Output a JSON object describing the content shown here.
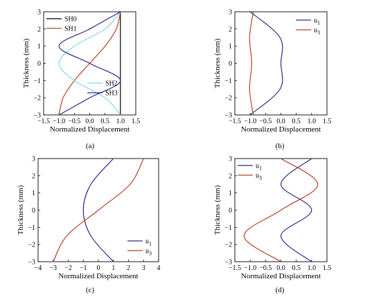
{
  "chart_data": [
    {
      "panel": "(a)",
      "type": "line",
      "xlabel": "Normalized Displacement",
      "ylabel": "Thickness (mm)",
      "xlim": [
        -1.5,
        1.5
      ],
      "ylim": [
        -3,
        3
      ],
      "xticks": [
        "-1.5",
        "-1.0",
        "-0.5",
        "0.0",
        "0.5",
        "1.0",
        "1.5"
      ],
      "yticks": [
        "3",
        "2",
        "1",
        "0",
        "-1",
        "-2",
        "-3"
      ],
      "legend_groups": [
        [
          "SH0",
          "SH1"
        ],
        [
          "SH2",
          "SH3"
        ]
      ],
      "legend_placement": [
        "top-left",
        "lower-right"
      ],
      "series": [
        {
          "name": "SH0",
          "color": "#000000",
          "x": [
            1,
            1,
            1,
            1,
            1,
            1,
            1
          ],
          "y": [
            -3,
            -2,
            -1,
            0,
            1,
            2,
            3
          ]
        },
        {
          "name": "SH1",
          "color": "#b5432a",
          "x": [
            -1,
            -0.866,
            -0.5,
            0,
            0.5,
            0.866,
            1
          ],
          "y": [
            -3,
            -2,
            -1,
            0,
            1,
            2,
            3
          ]
        },
        {
          "name": "SH2",
          "color": "#7fd6ef",
          "x": [
            1,
            0.5,
            -0.5,
            -1,
            -0.5,
            0.5,
            1
          ],
          "y": [
            -3,
            -2,
            -1,
            0,
            1,
            2,
            3
          ]
        },
        {
          "name": "SH3",
          "color": "#2b2a8c",
          "x": [
            -1,
            0,
            1,
            0,
            -1,
            0,
            1
          ],
          "y": [
            -3,
            -2,
            -1,
            0,
            1,
            2,
            3
          ]
        }
      ]
    },
    {
      "panel": "(b)",
      "type": "line",
      "xlabel": "Normalized Displacement",
      "ylabel": "Thickness (mm)",
      "xlim": [
        -1.5,
        1.5
      ],
      "ylim": [
        -3,
        3
      ],
      "xticks": [
        "-1.5",
        "-1.0",
        "-0.5",
        "0.0",
        "0.5",
        "1.0",
        "1.5"
      ],
      "yticks": [
        "3",
        "2",
        "1",
        "0",
        "-1",
        "-2",
        "-3"
      ],
      "legend_groups": [
        [
          "u1",
          "u3"
        ]
      ],
      "legend_placement": [
        "top-right"
      ],
      "series": [
        {
          "name": "u1",
          "color": "#2b2a8c",
          "x": [
            -1,
            -0.03,
            0,
            -0.03,
            -1
          ],
          "y": [
            3,
            1.5,
            0,
            -1.5,
            -3
          ]
        },
        {
          "name": "u3",
          "color": "#b5432a",
          "x": [
            -0.9,
            -1.02,
            -0.95,
            -1.02,
            -0.9
          ],
          "y": [
            3,
            1.5,
            0,
            -1.5,
            -3
          ]
        }
      ]
    },
    {
      "panel": "(c)",
      "type": "line",
      "xlabel": "Normalized Displacement",
      "ylabel": "Thickness (mm)",
      "xlim": [
        -4,
        4
      ],
      "ylim": [
        -3,
        3
      ],
      "xticks": [
        "-4",
        "-3",
        "-2",
        "-1",
        "0",
        "1",
        "2",
        "3",
        "4"
      ],
      "yticks": [
        "3",
        "2",
        "1",
        "0",
        "-1",
        "-2",
        "-3"
      ],
      "legend_groups": [
        [
          "u1",
          "u3"
        ]
      ],
      "legend_placement": [
        "bottom-right"
      ],
      "series": [
        {
          "name": "u1",
          "color": "#2b2a8c",
          "x": [
            1,
            -0.5,
            -1,
            -0.5,
            1
          ],
          "y": [
            3,
            1.5,
            0,
            -1.5,
            -3
          ]
        },
        {
          "name": "u3",
          "color": "#b5432a",
          "x": [
            -3,
            -2.1,
            0,
            2.1,
            3
          ],
          "y": [
            -3,
            -1.5,
            0,
            1.5,
            3
          ]
        }
      ]
    },
    {
      "panel": "(d)",
      "type": "line",
      "xlabel": "Normalized Displacement",
      "ylabel": "Thickness (mm)",
      "xlim": [
        -1.5,
        1.5
      ],
      "ylim": [
        -3,
        3
      ],
      "xticks": [
        "-1.5",
        "-1.0",
        "-0.5",
        "0.0",
        "0.5",
        "1.0",
        "1.5"
      ],
      "yticks": [
        "3",
        "2",
        "1",
        "0",
        "-1",
        "-2",
        "-3"
      ],
      "legend_groups": [
        [
          "u1",
          "u3"
        ]
      ],
      "legend_placement": [
        "top-left"
      ],
      "series": [
        {
          "name": "u1",
          "color": "#2b2a8c",
          "x": [
            1,
            0,
            1,
            0,
            1
          ],
          "y": [
            3,
            1.5,
            0,
            -1.5,
            -3
          ]
        },
        {
          "name": "u3",
          "color": "#b5432a",
          "x": [
            0,
            1.2,
            0,
            -1.2,
            0
          ],
          "y": [
            3,
            1.5,
            0,
            -1.5,
            -3
          ]
        }
      ]
    }
  ],
  "legend_labels": {
    "u1": "u",
    "u3": "u",
    "u1_sub": "1",
    "u3_sub": "3"
  },
  "captions": [
    "(a)",
    "(b)",
    "(c)",
    "(d)"
  ]
}
